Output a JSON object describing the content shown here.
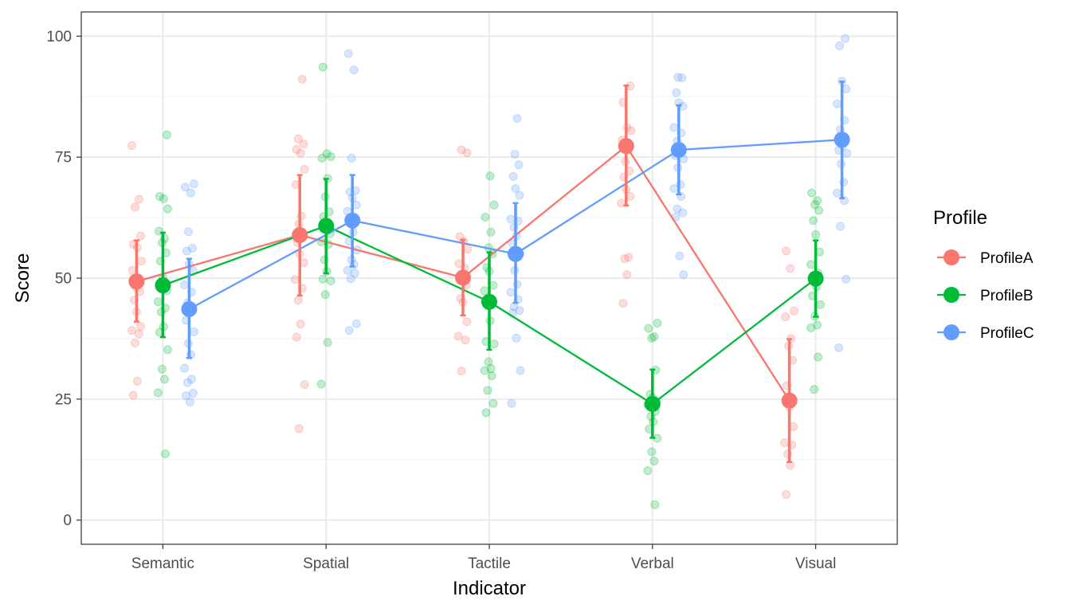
{
  "chart_data": {
    "type": "line",
    "xlabel": "Indicator",
    "ylabel": "Score",
    "categories": [
      "Semantic",
      "Spatial",
      "Tactile",
      "Verbal",
      "Visual"
    ],
    "ylim": [
      -5,
      105
    ],
    "yticks": [
      0,
      25,
      50,
      75,
      100
    ],
    "grid": true,
    "legend": {
      "title": "Profile",
      "position": "right"
    },
    "series": [
      {
        "name": "ProfileA",
        "color": "#F8766D",
        "means": [
          49.3,
          58.9,
          50.1,
          77.3,
          24.7
        ],
        "error_low": [
          41.0,
          46.4,
          42.3,
          65.0,
          12.0
        ],
        "error_high": [
          57.8,
          71.3,
          57.9,
          89.8,
          37.4
        ],
        "points": [
          [
            77.4,
            66.3,
            64.7,
            58.7,
            57.0,
            56.3,
            53.5,
            51.6,
            50.0,
            48.1,
            47.2,
            45.5,
            43.0,
            40.0,
            39.2,
            38.5,
            36.6,
            28.7,
            25.8
          ],
          [
            91.1,
            78.8,
            77.7,
            76.6,
            75.8,
            72.5,
            69.3,
            62.8,
            61.2,
            58.9,
            57.4,
            55.0,
            53.2,
            49.7,
            47.9,
            45.4,
            40.5,
            37.8,
            28.0,
            18.9
          ],
          [
            76.5,
            75.9,
            58.6,
            57.6,
            56.0,
            53.0,
            52.1,
            50.1,
            48.6,
            45.8,
            45.0,
            41.0,
            38.0,
            37.2,
            30.8
          ],
          [
            89.7,
            86.3,
            81.1,
            80.5,
            78.5,
            76.5,
            74.1,
            72.1,
            70.9,
            68.3,
            66.9,
            65.5,
            54.3,
            54.0,
            50.7,
            44.8
          ],
          [
            55.6,
            52.0,
            43.2,
            42.0,
            37.5,
            36.0,
            33.0,
            27.8,
            23.3,
            19.3,
            16.0,
            15.5,
            13.6,
            11.3,
            5.3
          ]
        ]
      },
      {
        "name": "ProfileB",
        "color": "#00BA38",
        "means": [
          48.5,
          60.8,
          45.1,
          24.0,
          49.9
        ],
        "error_low": [
          37.8,
          51.0,
          35.2,
          17.0,
          42.0
        ],
        "error_high": [
          59.4,
          70.5,
          55.3,
          31.1,
          57.8
        ],
        "points": [
          [
            79.6,
            66.9,
            66.4,
            64.3,
            59.7,
            58.2,
            57.3,
            55.2,
            53.5,
            50.1,
            47.4,
            45.1,
            43.8,
            43.0,
            40.0,
            38.8,
            35.2,
            31.2,
            29.1,
            26.3,
            13.7
          ],
          [
            93.6,
            75.7,
            75.1,
            74.8,
            70.6,
            66.8,
            63.7,
            62.7,
            61.0,
            59.2,
            57.5,
            57.0,
            53.8,
            51.4,
            49.8,
            49.4,
            46.6,
            36.7,
            28.1
          ],
          [
            71.1,
            65.1,
            62.6,
            59.5,
            56.3,
            55.0,
            52.2,
            51.4,
            48.5,
            47.4,
            45.6,
            44.3,
            41.2,
            36.9,
            36.4,
            32.7,
            31.3,
            30.9,
            29.8,
            26.8,
            24.1,
            22.2
          ],
          [
            40.7,
            39.6,
            37.9,
            37.6,
            31.0,
            26.0,
            25.3,
            24.5,
            23.9,
            22.4,
            21.4,
            20.3,
            18.8,
            16.9,
            14.1,
            12.2,
            10.2,
            3.2
          ],
          [
            67.6,
            66.0,
            65.2,
            64.0,
            61.9,
            59.0,
            55.4,
            52.8,
            51.0,
            49.5,
            48.2,
            46.3,
            44.5,
            42.1,
            40.3,
            39.7,
            33.7,
            27.0
          ]
        ]
      },
      {
        "name": "ProfileC",
        "color": "#619CFF",
        "means": [
          43.6,
          61.9,
          55.0,
          76.5,
          78.6
        ],
        "error_low": [
          33.5,
          52.4,
          44.9,
          67.3,
          66.5
        ],
        "error_high": [
          54.0,
          71.3,
          65.5,
          85.7,
          90.6
        ],
        "points": [
          [
            69.5,
            68.8,
            67.6,
            59.6,
            56.2,
            55.6,
            52.9,
            51.5,
            48.6,
            47.1,
            44.9,
            43.6,
            41.3,
            38.9,
            36.5,
            34.2,
            31.4,
            29.1,
            28.4,
            26.2,
            25.7,
            24.4
          ],
          [
            96.4,
            93.0,
            74.8,
            68.1,
            67.8,
            66.6,
            65.1,
            63.8,
            62.1,
            61.3,
            59.5,
            57.6,
            55.8,
            53.8,
            52.8,
            51.6,
            51.0,
            49.9,
            40.6,
            39.2
          ],
          [
            83.0,
            75.6,
            73.4,
            71.0,
            68.5,
            67.1,
            62.2,
            61.8,
            60.5,
            58.7,
            57.1,
            55.0,
            51.6,
            48.7,
            47.1,
            45.6,
            44.1,
            43.3,
            42.8,
            37.6,
            30.9,
            24.1
          ],
          [
            91.5,
            91.4,
            88.3,
            86.2,
            85.5,
            81.1,
            80.0,
            78.3,
            76.8,
            75.3,
            74.6,
            72.8,
            69.3,
            68.5,
            66.9,
            64.3,
            63.5,
            62.6,
            54.6,
            50.7
          ],
          [
            99.5,
            98.0,
            90.7,
            89.1,
            86.0,
            82.6,
            80.7,
            77.4,
            76.4,
            75.8,
            73.6,
            69.8,
            67.6,
            66.0,
            60.7,
            49.8,
            35.6
          ]
        ]
      }
    ]
  }
}
